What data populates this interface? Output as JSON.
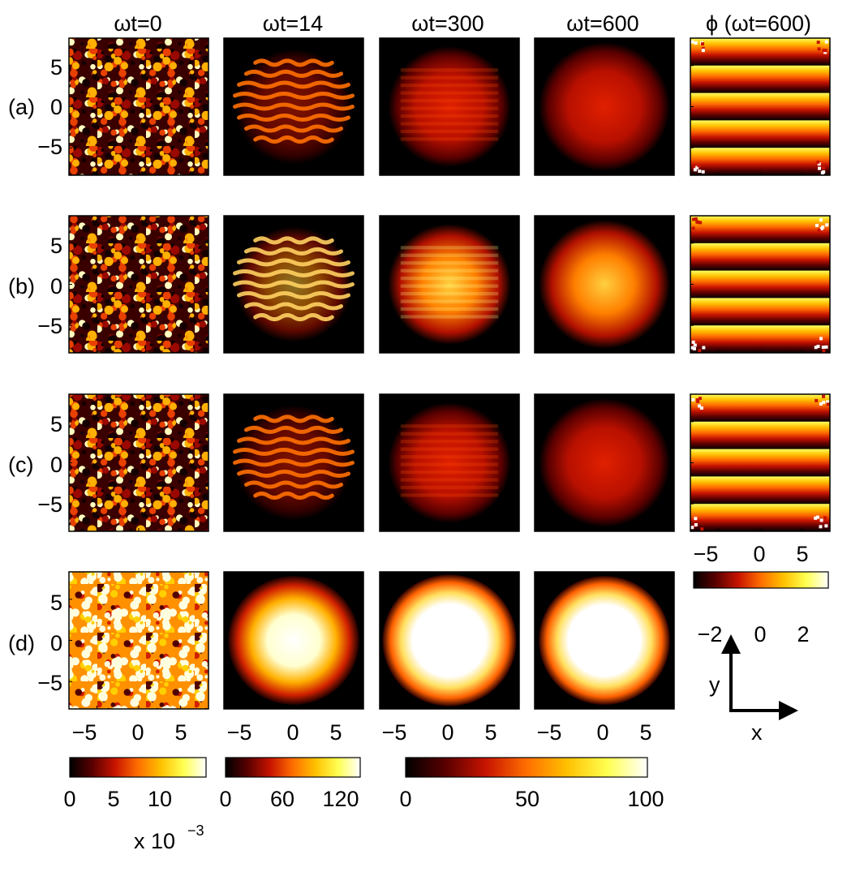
{
  "columns": [
    {
      "id": "c0",
      "title": "ωt=0"
    },
    {
      "id": "c1",
      "title": "ωt=14"
    },
    {
      "id": "c2",
      "title": "ωt=300"
    },
    {
      "id": "c3",
      "title": "ωt=600"
    },
    {
      "id": "c4",
      "title": "ϕ (ωt=600)"
    }
  ],
  "rows": [
    {
      "id": "a",
      "label": "(a)"
    },
    {
      "id": "b",
      "label": "(b)"
    },
    {
      "id": "c",
      "label": "(c)"
    },
    {
      "id": "d",
      "label": "(d)"
    }
  ],
  "y_ticks": [
    "5",
    "0",
    "−5"
  ],
  "x_ticks": [
    "−5",
    "0",
    "5"
  ],
  "phase_colorbar": {
    "ticks": [
      "−2",
      "0",
      "2"
    ],
    "range": [
      -3.1416,
      3.1416
    ]
  },
  "colorbars": [
    {
      "id": "cb0",
      "ticks": [
        "0",
        "5",
        "10"
      ],
      "values": [
        0,
        5,
        10
      ],
      "range": [
        0,
        15
      ],
      "exponent_label": "x 10",
      "exponent_power": "−3"
    },
    {
      "id": "cb1",
      "ticks": [
        "0",
        "60",
        "120"
      ],
      "values": [
        0,
        60,
        120
      ],
      "range": [
        0,
        140
      ]
    },
    {
      "id": "cb2",
      "ticks": [
        "0",
        "50",
        "100"
      ],
      "values": [
        0,
        50,
        100
      ],
      "range": [
        0,
        100
      ]
    }
  ],
  "axes_indicator": {
    "x_label": "x",
    "y_label": "y"
  },
  "colormap": [
    "#000000",
    "#5a0000",
    "#c81400",
    "#ff6e00",
    "#ffc000",
    "#ffff50",
    "#ffffff"
  ]
}
